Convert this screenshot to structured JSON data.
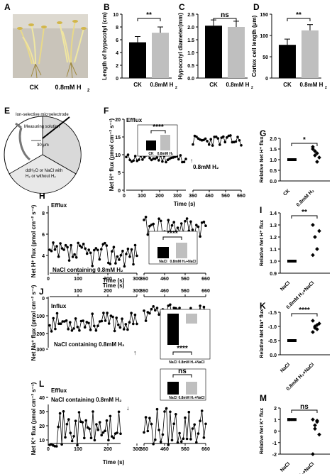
{
  "panels": {
    "A": {
      "letter": "A",
      "labels": [
        "CK",
        "0.8mM H",
        "2"
      ]
    },
    "B": {
      "letter": "B",
      "ylabel": "Length of hypocotyl (cm)",
      "sig": "**",
      "ticks": [
        "0",
        "2",
        "4",
        "6",
        "8",
        "10"
      ],
      "cats": [
        "CK",
        "0.8mM H",
        "2"
      ]
    },
    "C": {
      "letter": "C",
      "ylabel": "Hypocotyl diameter(mm)",
      "sig": "ns",
      "ticks": [
        "0.0",
        "0.5",
        "1.0",
        "1.5",
        "2.0",
        "2.5"
      ],
      "cats": [
        "CK",
        "0.8mM H",
        "2"
      ]
    },
    "D": {
      "letter": "D",
      "ylabel": "Cortex cell length (μm)",
      "sig": "**",
      "ticks": [
        "0",
        "50",
        "100",
        "150"
      ],
      "cats": [
        "CK",
        "0.8mM H",
        "2"
      ]
    },
    "E": {
      "letter": "E",
      "ion": "Ion-selective microelectrode",
      "measuring": "Measuring solution",
      "dist": "30 μm",
      "solution": [
        "ddH₂O or NaCl with",
        "H₂ or without H₂"
      ]
    },
    "F": {
      "letter": "F",
      "efflux": "Efflux",
      "ylabel": "Net H⁺ flux (pmol cm⁻² s⁻¹)",
      "xlabel": "Time (s)",
      "xticks": [
        "0",
        "100",
        "200",
        "300",
        "360",
        "460",
        "560",
        "660"
      ],
      "yticks": [
        "0",
        "5",
        "10",
        "15",
        "20"
      ],
      "sig": "****",
      "inset_ticks": [
        "0",
        "5",
        "10",
        "15",
        "20",
        "25"
      ],
      "inset_cats": [
        "CK",
        "0.8mM H₂"
      ],
      "note": "0.8mM H₂"
    },
    "G": {
      "letter": "G",
      "ylabel": "Relative Net H⁺ flux",
      "sig": "*",
      "yticks": [
        "0.0",
        "0.5",
        "1.0",
        "1.5",
        "2.0"
      ],
      "cats": [
        "CK",
        "0.8mM H₂"
      ]
    },
    "H": {
      "letter": "H",
      "efflux": "Efflux",
      "ylabel": "Net H⁺ flux (pmol cm⁻² s⁻¹)",
      "xlabel": "Time (s)",
      "xticks": [
        "0",
        "100",
        "200",
        "300",
        "360",
        "460",
        "560",
        "660"
      ],
      "yticks": [
        "4",
        "6",
        "8"
      ],
      "note": "NaCl containing 0.8mM H₂",
      "sig": "****",
      "inset_cats": [
        "NaCl",
        "0.8mM H₂+NaCl"
      ]
    },
    "I": {
      "letter": "I",
      "ylabel": "Relative Net H⁺ flux",
      "sig": "**",
      "yticks": [
        "0.9",
        "1.0",
        "1.1",
        "1.2",
        "1.3",
        "1.4"
      ],
      "cats": [
        "NaCl",
        "0.8mM H₂+NaCl"
      ]
    },
    "J": {
      "letter": "J",
      "influx": "Influx",
      "xlabel": "Time (s)",
      "ylabel": "Net Na⁺ flux (pmol cm⁻² s⁻¹)",
      "xticks": [
        "100",
        "200",
        "300",
        "360",
        "460",
        "560",
        "660"
      ],
      "yticks": [
        "0",
        "-100",
        "-200",
        "-300"
      ],
      "note": "NaCl containing 0.8mM H₂",
      "sig": "****",
      "inset_ticks": [
        "0",
        "-50",
        "-100",
        "-150",
        "-200",
        "-250"
      ],
      "inset_cats": [
        "NaCl",
        "0.8mM H₂+NaCl"
      ]
    },
    "K": {
      "letter": "K",
      "ylabel": "Relative Net Na⁺ flux",
      "sig": "****",
      "yticks": [
        "0.0",
        "-0.5",
        "-1.0",
        "-1.5"
      ],
      "cats": [
        "NaCl",
        "0.8mM H₂+NaCl"
      ]
    },
    "L": {
      "letter": "L",
      "efflux": "Efflux",
      "note": "NaCl containing 0.8mM H₂",
      "ylabel": "Net K⁺ flux (pmol cm⁻² s⁻¹)",
      "xlabel": "Time (s)",
      "xticks": [
        "0",
        "100",
        "200",
        "300",
        "360",
        "460",
        "560",
        "660"
      ],
      "yticks": [
        "10",
        "20",
        "30",
        "40"
      ],
      "sig": "ns",
      "inset_cats": [
        "NaCl",
        "0.8mM H₂+NaCl"
      ]
    },
    "M": {
      "letter": "M",
      "ylabel": "Relative Net K⁺ flux",
      "sig": "ns",
      "yticks": [
        "-2",
        "-1",
        "0",
        "1",
        "2"
      ],
      "cats": [
        "NaCl",
        "0.8mM H₂+NaCl"
      ]
    }
  },
  "chart_data": [
    {
      "type": "bar",
      "panel": "B",
      "categories": [
        "CK",
        "0.8mM H2"
      ],
      "values": [
        5.6,
        7.1
      ],
      "ylabel": "Length of hypocotyl (cm)",
      "ylim": [
        0,
        10
      ]
    },
    {
      "type": "bar",
      "panel": "C",
      "categories": [
        "CK",
        "0.8mM H2"
      ],
      "values": [
        2.05,
        2.0
      ],
      "ylabel": "Hypocotyl diameter(mm)",
      "ylim": [
        0,
        2.5
      ]
    },
    {
      "type": "bar",
      "panel": "D",
      "categories": [
        "CK",
        "0.8mM H2"
      ],
      "values": [
        78,
        112
      ],
      "ylabel": "Cortex cell length (μm)",
      "ylim": [
        0,
        150
      ]
    },
    {
      "type": "line",
      "panel": "F",
      "ylim": [
        0,
        20
      ],
      "xlabel": "Time (s)"
    },
    {
      "type": "scatter",
      "panel": "G",
      "categories": [
        "CK",
        "0.8mM H2"
      ],
      "values": [
        [
          1,
          1,
          1,
          1,
          1,
          1
        ],
        [
          1.6,
          1.4,
          1.3,
          1.1,
          1.5,
          1.2,
          0.9
        ]
      ],
      "ylim": [
        0,
        2
      ]
    },
    {
      "type": "line",
      "panel": "H",
      "ylim": [
        3,
        8
      ],
      "xlabel": "Time (s)"
    },
    {
      "type": "scatter",
      "panel": "I",
      "categories": [
        "NaCl",
        "0.8mM H2+NaCl"
      ],
      "values": [
        [
          1,
          1,
          1,
          1,
          1
        ],
        [
          1.3,
          1.2,
          1.1,
          1.25,
          1.05
        ]
      ],
      "ylim": [
        0.9,
        1.4
      ]
    },
    {
      "type": "line",
      "panel": "J",
      "ylim": [
        -300,
        0
      ],
      "xlabel": "Time (s)"
    },
    {
      "type": "scatter",
      "panel": "K",
      "categories": [
        "NaCl",
        "0.8mM H2+NaCl"
      ],
      "values": [
        [
          -1,
          -1,
          -1,
          -1,
          -1,
          -1
        ],
        [
          -0.3,
          -0.5,
          -0.6,
          -0.4,
          -0.7,
          -0.55,
          -0.45
        ]
      ],
      "ylim": [
        -1.5,
        0
      ]
    },
    {
      "type": "line",
      "panel": "L",
      "ylim": [
        5,
        45
      ],
      "xlabel": "Time (s)"
    },
    {
      "type": "scatter",
      "panel": "M",
      "categories": [
        "NaCl",
        "0.8mM H2+NaCl"
      ],
      "values": [
        [
          1,
          1,
          1,
          1,
          1
        ],
        [
          1,
          0.5,
          0.8,
          -0.3,
          -2,
          0.2,
          0.9
        ]
      ],
      "ylim": [
        -2,
        2
      ]
    }
  ]
}
